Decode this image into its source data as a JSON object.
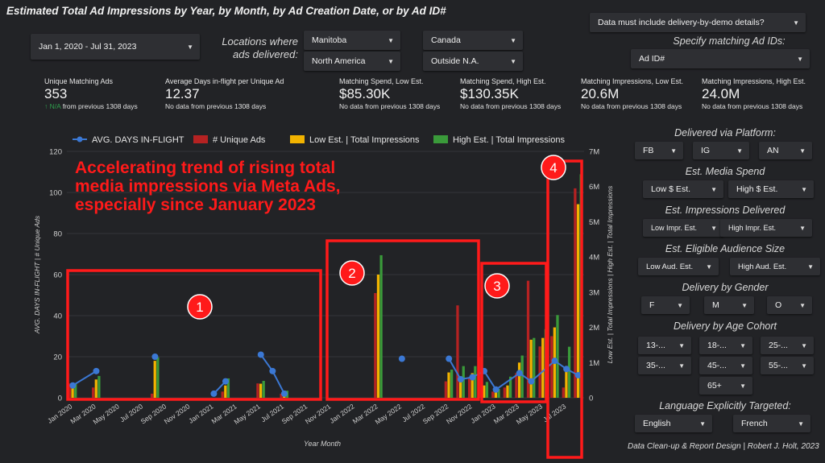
{
  "title": "Estimated Total Ad Impressions by Year, by Month, by Ad Creation Date, or by Ad ID#",
  "filters": {
    "date_range": "Jan 1, 2020 - Jul 31, 2023",
    "locations_label_line1": "Locations where",
    "locations_label_line2": "ads delivered:",
    "manitoba": "Manitoba",
    "canada": "Canada",
    "north_america": "North America",
    "outside_na": "Outside N.A.",
    "delivery_demo": "Data must include delivery-by-demo details?",
    "ad_ids_label": "Specify matching Ad IDs:",
    "ad_id": "Ad ID#"
  },
  "kpis": [
    {
      "title": "Unique Matching Ads",
      "value": "353",
      "na": "↑ N/A",
      "sub": "from previous 1308 days"
    },
    {
      "title": "Average Days in-flight per Unique Ad",
      "value": "12.37",
      "sub": "No data from previous 1308 days"
    },
    {
      "title": "Matching Spend, Low Est.",
      "value": "$85.30K",
      "sub": "No data from previous 1308 days"
    },
    {
      "title": "Matching Spend, High Est.",
      "value": "$130.35K",
      "sub": "No data from previous 1308 days"
    },
    {
      "title": "Matching Impressions, Low Est.",
      "value": "20.6M",
      "sub": "No data from previous 1308 days"
    },
    {
      "title": "Matching Impressions, High Est.",
      "value": "24.0M",
      "sub": "No data from previous 1308 days"
    }
  ],
  "sidebar": {
    "platform_label": "Delivered via Platform:",
    "platforms": [
      "FB",
      "IG",
      "AN"
    ],
    "spend_label": "Est. Media Spend",
    "spend": [
      "Low $ Est.",
      "High $ Est."
    ],
    "impr_label": "Est. Impressions Delivered",
    "impr": [
      "Low Impr. Est.",
      "High Impr. Est."
    ],
    "aud_label": "Est. Eligible Audience Size",
    "aud": [
      "Low Aud. Est.",
      "High Aud. Est."
    ],
    "gender_label": "Delivery by Gender",
    "gender": [
      "F",
      "M",
      "O"
    ],
    "age_label": "Delivery by Age Cohort",
    "age": [
      "13-...",
      "18-...",
      "25-...",
      "35-...",
      "45-...",
      "55-...",
      "65+"
    ],
    "lang_label": "Language Explicitly Targeted:",
    "lang": [
      "English",
      "French"
    ]
  },
  "footer": "Data Clean-up & Report Design | Robert J. Holt, 2023",
  "colors": {
    "line": "#3b78d4",
    "unique": "#b52222",
    "low": "#f2b300",
    "high": "#3a9a3a",
    "annotation": "#ff1a1a"
  },
  "chart_data": {
    "type": "bar",
    "legend": [
      "AVG. DAYS IN-FLIGHT",
      "# Unique Ads",
      "Low Est. | Total Impressions",
      "High Est. | Total Impressions"
    ],
    "legend_position": "top",
    "xlabel": "Year Month",
    "ylabel_left": "AVG. DAYS IN-FLIGHT | # Unique Ads",
    "ylabel_right": "Low Est. | Total Impressions | High Est. | Total Impressions",
    "ylim_left": [
      0,
      120
    ],
    "ylim_right": [
      0,
      7000000
    ],
    "left_ticks": [
      "0",
      "20",
      "40",
      "60",
      "80",
      "100",
      "120"
    ],
    "right_ticks": [
      "0",
      "1M",
      "2M",
      "3M",
      "4M",
      "5M",
      "6M",
      "7M"
    ],
    "x_tick_labels": [
      "Jan 2020",
      "Mar 2020",
      "May 2020",
      "Jul 2020",
      "Sep 2020",
      "Nov 2020",
      "Jan 2021",
      "Mar 2021",
      "May 2021",
      "Jul 2021",
      "Sep 2021",
      "Nov 2021",
      "Jan 2022",
      "Mar 2022",
      "May 2022",
      "Jul 2022",
      "Sep 2022",
      "Nov 2022",
      "Jan 2023",
      "Mar 2023",
      "May 2023",
      "Jul 2023"
    ],
    "bars": [
      {
        "month": 0,
        "unique": 7,
        "low": 300000,
        "high": 400000
      },
      {
        "month": 2,
        "unique": 5,
        "low": 520000,
        "high": 620000
      },
      {
        "month": 7,
        "unique": 2,
        "low": 1050000,
        "high": 1150000
      },
      {
        "month": 13,
        "unique": 3,
        "low": 350000,
        "high": 550000
      },
      {
        "month": 16,
        "unique": 7,
        "low": 400000,
        "high": 480000
      },
      {
        "month": 18,
        "unique": 2,
        "low": 150000,
        "high": 200000
      },
      {
        "month": 26,
        "unique": 51,
        "low": 3500000,
        "high": 4050000
      },
      {
        "month": 32,
        "unique": 8,
        "low": 720000,
        "high": 800000
      },
      {
        "month": 33,
        "unique": 45,
        "low": 500000,
        "high": 900000
      },
      {
        "month": 34,
        "unique": 10,
        "low": 700000,
        "high": 900000
      },
      {
        "month": 35,
        "unique": 20,
        "low": 350000,
        "high": 450000
      },
      {
        "month": 36,
        "unique": 3,
        "low": 150000,
        "high": 250000
      },
      {
        "month": 37,
        "unique": 5,
        "low": 350000,
        "high": 600000
      },
      {
        "month": 38,
        "unique": 12,
        "low": 1000000,
        "high": 1200000
      },
      {
        "month": 39,
        "unique": 57,
        "low": 1650000,
        "high": 1700000
      },
      {
        "month": 40,
        "unique": 25,
        "low": 1700000,
        "high": 1950000
      },
      {
        "month": 41,
        "unique": 30,
        "low": 2000000,
        "high": 2350000
      },
      {
        "month": 42,
        "unique": 5,
        "low": 850000,
        "high": 1450000
      },
      {
        "month": 43,
        "unique": 102,
        "low": 5500000,
        "high": 6350000
      }
    ],
    "line": [
      {
        "month": 0,
        "value": 6
      },
      {
        "month": 2,
        "value": 13
      },
      {
        "month": 7,
        "value": 20
      },
      {
        "month": 12,
        "value": 2
      },
      {
        "month": 13,
        "value": 8
      },
      {
        "month": 16,
        "value": 21
      },
      {
        "month": 17,
        "value": 13
      },
      {
        "month": 18,
        "value": 2
      },
      {
        "month": 28,
        "value": 19
      },
      {
        "month": 32,
        "value": 19
      },
      {
        "month": 33,
        "value": 9
      },
      {
        "month": 34,
        "value": 10
      },
      {
        "month": 35,
        "value": 13
      },
      {
        "month": 36,
        "value": 4
      },
      {
        "month": 38,
        "value": 12
      },
      {
        "month": 39,
        "value": 8
      },
      {
        "month": 41,
        "value": 18
      },
      {
        "month": 42,
        "value": 14
      },
      {
        "month": 43,
        "value": 11
      }
    ]
  },
  "annotations": {
    "headline_1": "Accelerating trend of rising total",
    "headline_2": "media impressions via Meta Ads,",
    "headline_3": "especially since January 2023",
    "markers": [
      "1",
      "2",
      "3",
      "4"
    ]
  }
}
